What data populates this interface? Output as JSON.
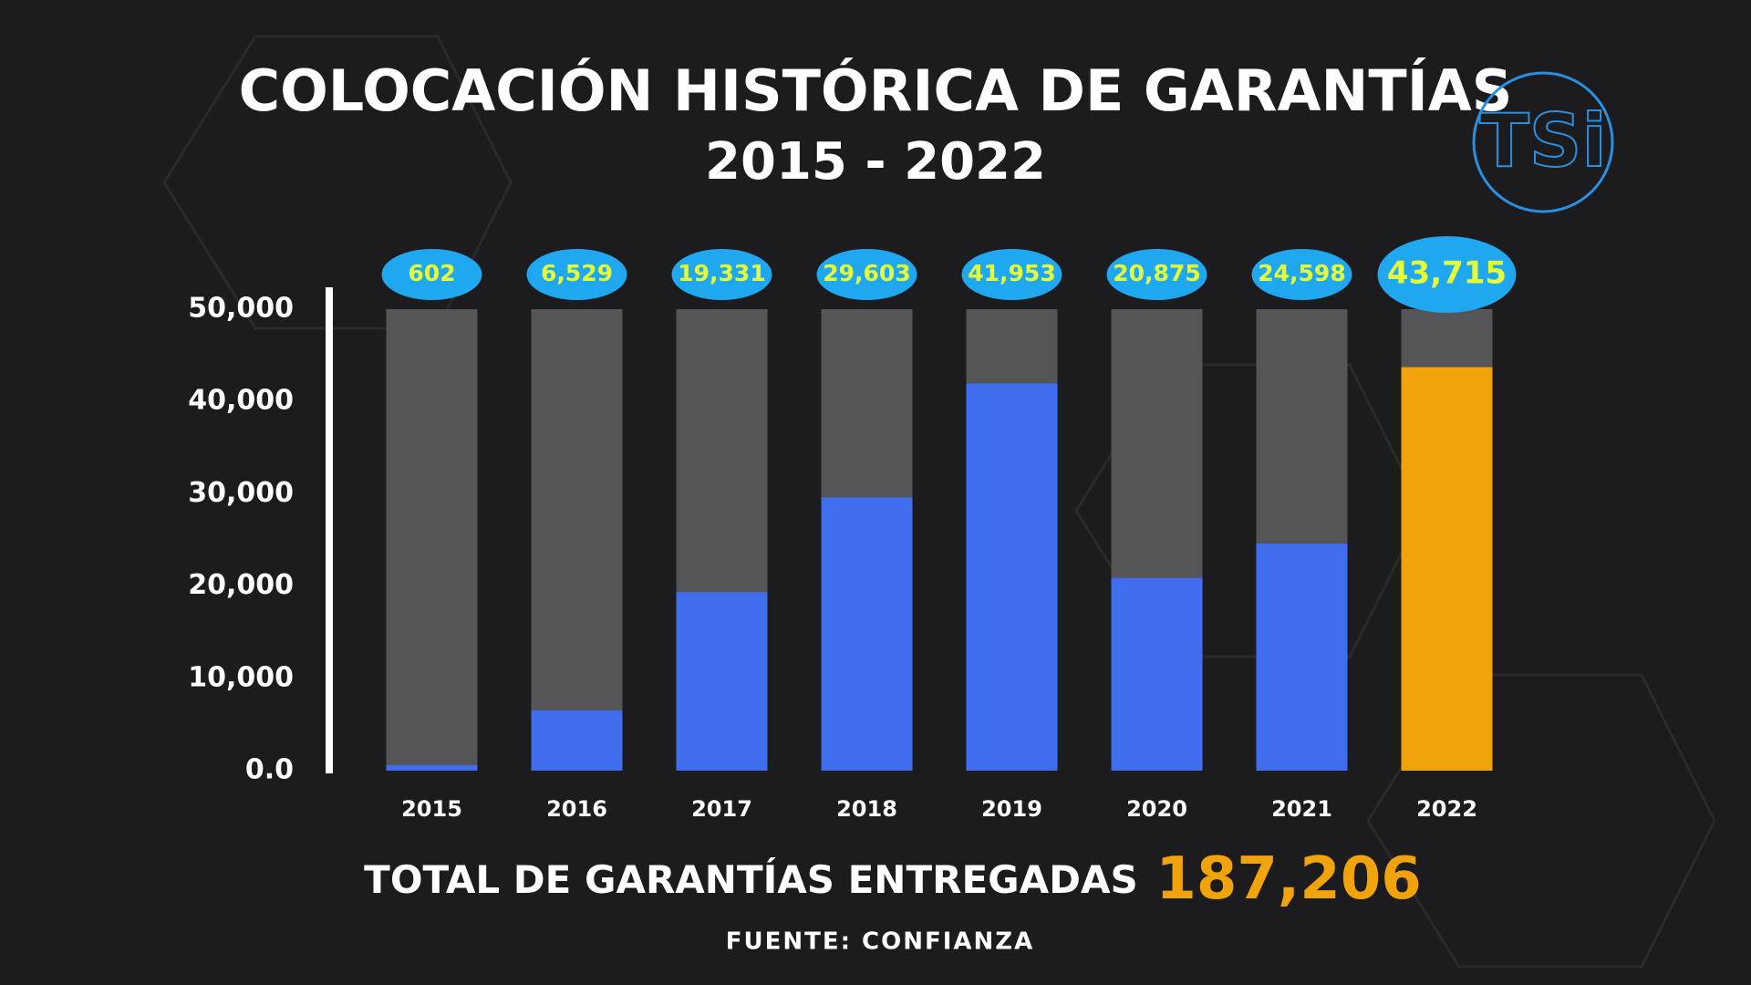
{
  "chart_data": {
    "type": "bar",
    "title": "COLOCACIÓN HISTÓRICA DE GARANTÍAS",
    "subtitle": "2015 - 2022",
    "categories": [
      "2015",
      "2016",
      "2017",
      "2018",
      "2019",
      "2020",
      "2021",
      "2022"
    ],
    "values": [
      602,
      6529,
      19331,
      29603,
      41953,
      20875,
      24598,
      43715
    ],
    "value_labels": [
      "602",
      "6,529",
      "19,331",
      "29,603",
      "41,953",
      "20,875",
      "24,598",
      "43,715"
    ],
    "colors": [
      "#3f6ded",
      "#3f6ded",
      "#3f6ded",
      "#3f6ded",
      "#3f6ded",
      "#3f6ded",
      "#3f6ded",
      "#f0a30a"
    ],
    "ylim": [
      0,
      50000
    ],
    "yticks": [
      {
        "value": 0,
        "label": "0.0"
      },
      {
        "value": 10000,
        "label": "10,000"
      },
      {
        "value": 20000,
        "label": "20,000"
      },
      {
        "value": 30000,
        "label": "30,000"
      },
      {
        "value": 40000,
        "label": "40,000"
      },
      {
        "value": 50000,
        "label": "50,000"
      }
    ],
    "total_label": "TOTAL DE GARANTÍAS ENTREGADAS",
    "total_value": "187,206",
    "source": "FUENTE: CONFIANZA",
    "logo": "TSi"
  }
}
